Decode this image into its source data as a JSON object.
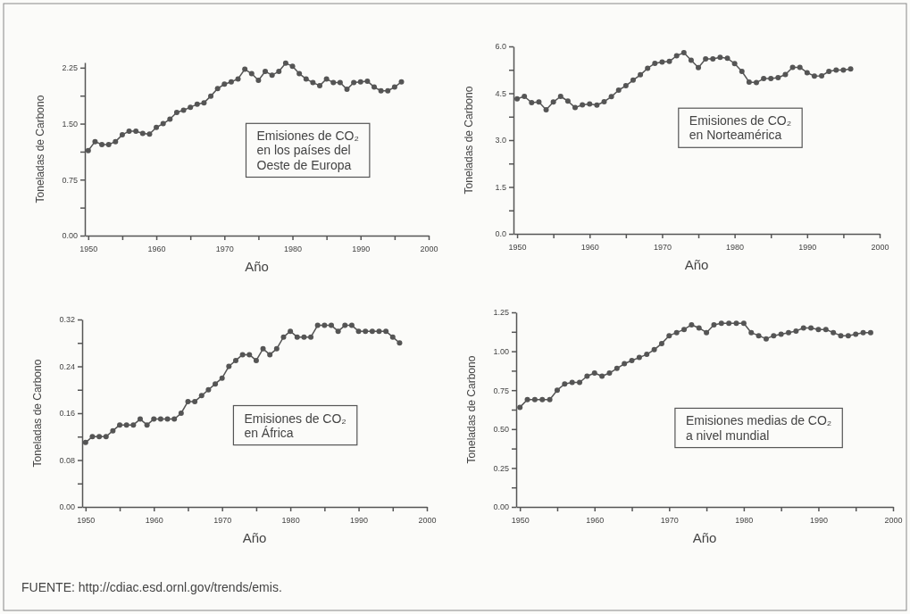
{
  "chart_data": [
    {
      "type": "line",
      "title": "Emisiones de CO₂\nen los países del\nOeste de Europa",
      "xlabel": "Año",
      "ylabel": "Toneladas de Carbono",
      "marker": "circle",
      "line_style": "solid",
      "x": [
        1950,
        1951,
        1952,
        1953,
        1954,
        1955,
        1956,
        1957,
        1958,
        1959,
        1960,
        1961,
        1962,
        1963,
        1964,
        1965,
        1966,
        1967,
        1968,
        1969,
        1970,
        1971,
        1972,
        1973,
        1974,
        1975,
        1976,
        1977,
        1978,
        1979,
        1980,
        1981,
        1982,
        1983,
        1984,
        1985,
        1986,
        1987,
        1988,
        1989,
        1990,
        1991,
        1992,
        1993,
        1994,
        1995,
        1996
      ],
      "series": [
        {
          "color": "#555555",
          "values": [
            1.14,
            1.26,
            1.22,
            1.22,
            1.26,
            1.35,
            1.4,
            1.4,
            1.37,
            1.36,
            1.45,
            1.5,
            1.56,
            1.65,
            1.68,
            1.72,
            1.76,
            1.78,
            1.87,
            1.97,
            2.03,
            2.06,
            2.1,
            2.23,
            2.17,
            2.08,
            2.2,
            2.15,
            2.2,
            2.31,
            2.27,
            2.17,
            2.1,
            2.05,
            2.01,
            2.1,
            2.05,
            2.05,
            1.96,
            2.05,
            2.06,
            2.07,
            1.99,
            1.94,
            1.94,
            1.99,
            2.06
          ]
        }
      ],
      "xlim": [
        1949.5,
        2000
      ],
      "xticks": [
        1950,
        {
          "value": 1955,
          "label": null
        },
        1960,
        {
          "value": 1965,
          "label": null
        },
        1970,
        {
          "value": 1975,
          "label": null
        },
        1980,
        {
          "value": 1985,
          "label": null
        },
        1990,
        {
          "value": 1995,
          "label": null
        },
        2000
      ],
      "ylim": [
        0,
        2.32
      ],
      "yticks": [
        {
          "value": 0,
          "label": "0.00"
        },
        {
          "value": 0.375,
          "label": null
        },
        {
          "value": 0.75,
          "label": "0.75"
        },
        {
          "value": 1.125,
          "label": null
        },
        {
          "value": 1.5,
          "label": "1.50"
        },
        {
          "value": 1.875,
          "label": null
        },
        {
          "value": 2.25,
          "label": "2.25"
        }
      ]
    },
    {
      "type": "line",
      "title": "Emisiones de CO₂\nen Norteamérica",
      "xlabel": "Año",
      "ylabel": "Toneladas de Carbono",
      "marker": "circle",
      "line_style": "solid",
      "x": [
        1950,
        1951,
        1952,
        1953,
        1954,
        1955,
        1956,
        1957,
        1958,
        1959,
        1960,
        1961,
        1962,
        1963,
        1964,
        1965,
        1966,
        1967,
        1968,
        1969,
        1970,
        1971,
        1972,
        1973,
        1974,
        1975,
        1976,
        1977,
        1978,
        1979,
        1980,
        1981,
        1982,
        1983,
        1984,
        1985,
        1986,
        1987,
        1988,
        1989,
        1990,
        1991,
        1992,
        1993,
        1994,
        1995,
        1996
      ],
      "series": [
        {
          "color": "#555555",
          "values": [
            4.32,
            4.4,
            4.2,
            4.22,
            3.97,
            4.22,
            4.4,
            4.25,
            4.04,
            4.13,
            4.16,
            4.12,
            4.23,
            4.39,
            4.6,
            4.74,
            4.92,
            5.09,
            5.3,
            5.46,
            5.5,
            5.52,
            5.7,
            5.8,
            5.56,
            5.32,
            5.6,
            5.6,
            5.65,
            5.62,
            5.45,
            5.2,
            4.86,
            4.84,
            4.97,
            4.97,
            5.0,
            5.1,
            5.33,
            5.33,
            5.16,
            5.05,
            5.06,
            5.2,
            5.24,
            5.24,
            5.28
          ]
        }
      ],
      "xlim": [
        1949.5,
        2000
      ],
      "xticks": [
        1950,
        {
          "value": 1955,
          "label": null
        },
        1960,
        {
          "value": 1965,
          "label": null
        },
        1970,
        {
          "value": 1975,
          "label": null
        },
        1980,
        {
          "value": 1985,
          "label": null
        },
        1990,
        {
          "value": 1995,
          "label": null
        },
        2000
      ],
      "ylim": [
        0,
        6
      ],
      "yticks": [
        {
          "value": 0,
          "label": "0.0"
        },
        {
          "value": 0.75,
          "label": null
        },
        {
          "value": 1.5,
          "label": "1.5"
        },
        {
          "value": 2.25,
          "label": null
        },
        {
          "value": 3,
          "label": "3.0"
        },
        {
          "value": 3.75,
          "label": null
        },
        {
          "value": 4.5,
          "label": "4.5"
        },
        {
          "value": 5.25,
          "label": null
        },
        {
          "value": 6,
          "label": "6.0"
        }
      ]
    },
    {
      "type": "line",
      "title": "Emisiones de CO₂\nen África",
      "xlabel": "Año",
      "ylabel": "Toneladas de Carbono",
      "marker": "circle",
      "line_style": "solid",
      "x": [
        1950,
        1951,
        1952,
        1953,
        1954,
        1955,
        1956,
        1957,
        1958,
        1959,
        1960,
        1961,
        1962,
        1963,
        1964,
        1965,
        1966,
        1967,
        1968,
        1969,
        1970,
        1971,
        1972,
        1973,
        1974,
        1975,
        1976,
        1977,
        1978,
        1979,
        1980,
        1981,
        1982,
        1983,
        1984,
        1985,
        1986,
        1987,
        1988,
        1989,
        1990,
        1991,
        1992,
        1993,
        1994,
        1995,
        1996
      ],
      "series": [
        {
          "color": "#555555",
          "values": [
            0.11,
            0.12,
            0.12,
            0.12,
            0.13,
            0.14,
            0.14,
            0.14,
            0.15,
            0.14,
            0.15,
            0.15,
            0.15,
            0.15,
            0.16,
            0.18,
            0.18,
            0.19,
            0.2,
            0.21,
            0.22,
            0.24,
            0.25,
            0.26,
            0.26,
            0.25,
            0.27,
            0.26,
            0.27,
            0.29,
            0.3,
            0.29,
            0.29,
            0.29,
            0.31,
            0.31,
            0.31,
            0.3,
            0.31,
            0.31,
            0.3,
            0.3,
            0.3,
            0.3,
            0.3,
            0.29,
            0.28
          ]
        }
      ],
      "xlim": [
        1949.5,
        2000
      ],
      "xticks": [
        1950,
        {
          "value": 1955,
          "label": null
        },
        1960,
        {
          "value": 1965,
          "label": null
        },
        1970,
        {
          "value": 1975,
          "label": null
        },
        1980,
        {
          "value": 1985,
          "label": null
        },
        1990,
        {
          "value": 1995,
          "label": null
        },
        2000
      ],
      "ylim": [
        0,
        0.32
      ],
      "yticks": [
        {
          "value": 0,
          "label": "0.00"
        },
        {
          "value": 0.04,
          "label": null
        },
        {
          "value": 0.08,
          "label": "0.08"
        },
        {
          "value": 0.12,
          "label": null
        },
        {
          "value": 0.16,
          "label": "0.16"
        },
        {
          "value": 0.2,
          "label": null
        },
        {
          "value": 0.24,
          "label": "0.24"
        },
        {
          "value": 0.28,
          "label": null
        },
        {
          "value": 0.32,
          "label": "0.32"
        }
      ]
    },
    {
      "type": "line",
      "title": "Emisiones medias de CO₂\na nivel mundial",
      "xlabel": "Año",
      "ylabel": "Toneladas de Carbono",
      "marker": "circle",
      "line_style": "solid",
      "x": [
        1950,
        1951,
        1952,
        1953,
        1954,
        1955,
        1956,
        1957,
        1958,
        1959,
        1960,
        1961,
        1962,
        1963,
        1964,
        1965,
        1966,
        1967,
        1968,
        1969,
        1970,
        1971,
        1972,
        1973,
        1974,
        1975,
        1976,
        1977,
        1978,
        1979,
        1980,
        1981,
        1982,
        1983,
        1984,
        1985,
        1986,
        1987,
        1988,
        1989,
        1990,
        1991,
        1992,
        1993,
        1994,
        1995,
        1996,
        1997
      ],
      "series": [
        {
          "color": "#555555",
          "values": [
            0.64,
            0.69,
            0.69,
            0.69,
            0.69,
            0.75,
            0.79,
            0.8,
            0.8,
            0.84,
            0.86,
            0.84,
            0.86,
            0.89,
            0.92,
            0.94,
            0.96,
            0.98,
            1.01,
            1.05,
            1.1,
            1.12,
            1.14,
            1.17,
            1.15,
            1.12,
            1.17,
            1.18,
            1.18,
            1.18,
            1.18,
            1.12,
            1.1,
            1.08,
            1.1,
            1.11,
            1.12,
            1.13,
            1.15,
            1.15,
            1.14,
            1.14,
            1.12,
            1.1,
            1.1,
            1.11,
            1.12,
            1.12
          ]
        }
      ],
      "xlim": [
        1949.5,
        2000
      ],
      "xticks": [
        1950,
        {
          "value": 1955,
          "label": null
        },
        1960,
        {
          "value": 1965,
          "label": null
        },
        1970,
        {
          "value": 1975,
          "label": null
        },
        1980,
        {
          "value": 1985,
          "label": null
        },
        1990,
        {
          "value": 1995,
          "label": null
        },
        2000
      ],
      "ylim": [
        0,
        1.25
      ],
      "yticks": [
        {
          "value": 0,
          "label": "0.00"
        },
        {
          "value": 0.125,
          "label": null
        },
        {
          "value": 0.25,
          "label": "0.25"
        },
        {
          "value": 0.375,
          "label": null
        },
        {
          "value": 0.5,
          "label": "0.50"
        },
        {
          "value": 0.625,
          "label": null
        },
        {
          "value": 0.75,
          "label": "0.75"
        },
        {
          "value": 0.875,
          "label": null
        },
        {
          "value": 1,
          "label": "1.00"
        },
        {
          "value": 1.125,
          "label": null
        },
        {
          "value": 1.25,
          "label": "1.25"
        }
      ],
      "annotations": [
        "FUENTE: http://cdiac.esd.ornl.gov/trends/emis."
      ]
    }
  ]
}
